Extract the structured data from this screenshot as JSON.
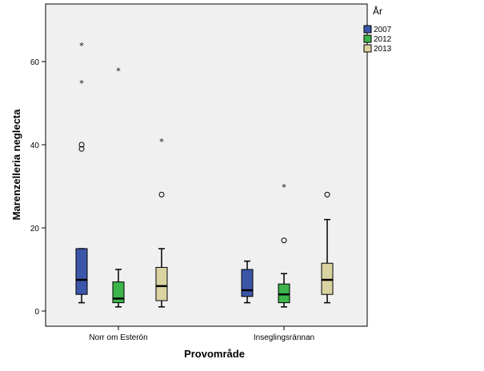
{
  "chart_data": {
    "type": "boxplot",
    "xlabel": "Provområde",
    "ylabel": "Marenzelleria neglecta",
    "ylim": [
      -5,
      72
    ],
    "yticks": [
      0,
      20,
      40,
      60
    ],
    "categories": [
      "Norr om Esterön",
      "Inseglingsrännan"
    ],
    "legend": {
      "title": "År",
      "position": "top-right"
    },
    "series": [
      {
        "name": "2007",
        "color": "#3b56a8",
        "boxes": [
          {
            "min": 2,
            "q1": 4,
            "median": 7.5,
            "q3": 15,
            "max": 15,
            "outliers": [
              39,
              40
            ],
            "extremes": [
              55,
              64
            ]
          },
          {
            "min": 2,
            "q1": 3.5,
            "median": 5,
            "q3": 10,
            "max": 12,
            "outliers": [],
            "extremes": []
          }
        ]
      },
      {
        "name": "2012",
        "color": "#3cb54a",
        "boxes": [
          {
            "min": 1,
            "q1": 2,
            "median": 3,
            "q3": 7,
            "max": 10,
            "outliers": [],
            "extremes": [
              58
            ]
          },
          {
            "min": 1,
            "q1": 2,
            "median": 4,
            "q3": 6.5,
            "max": 9,
            "outliers": [
              17
            ],
            "extremes": [
              30
            ]
          }
        ]
      },
      {
        "name": "2013",
        "color": "#d9d3a1",
        "boxes": [
          {
            "min": 1,
            "q1": 2.5,
            "median": 6,
            "q3": 10.5,
            "max": 15,
            "outliers": [
              28
            ],
            "extremes": [
              41
            ]
          },
          {
            "min": 2,
            "q1": 4,
            "median": 7.5,
            "q3": 11.5,
            "max": 22,
            "outliers": [
              28
            ],
            "extremes": []
          }
        ]
      }
    ]
  }
}
